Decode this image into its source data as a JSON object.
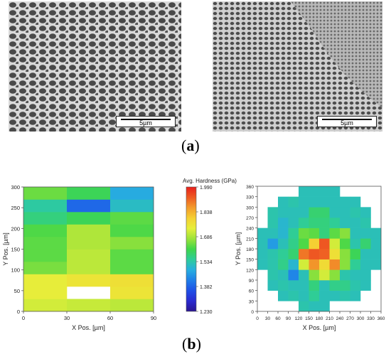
{
  "panels": {
    "a": {
      "label_open": "(",
      "label_letter": "a",
      "label_close": ")"
    },
    "b": {
      "label_open": "(",
      "label_letter": "b",
      "label_close": ")"
    }
  },
  "sem_images": [
    {
      "scale_label": "5µm"
    },
    {
      "scale_label": "5µm"
    }
  ],
  "colors": {
    "sem_background": "#3a3a3a",
    "colorbar_stops": [
      "#2a1590",
      "#2a2ad0",
      "#1f4fe6",
      "#1f7ee8",
      "#27aee0",
      "#2ecc9a",
      "#3fd64a",
      "#9be33a",
      "#e6ef3a",
      "#f5d033",
      "#f39c2b",
      "#ee5a22",
      "#e8201c"
    ]
  },
  "chart_data": [
    {
      "type": "heatmap",
      "title": "",
      "xlabel": "X Pos. [µm]",
      "ylabel": "Y Pos. [µm]",
      "xlim": [
        0,
        90
      ],
      "ylim": [
        0,
        300
      ],
      "xticks": [
        "0",
        "30",
        "60",
        "90"
      ],
      "yticks": [
        "0",
        "50",
        "100",
        "150",
        "200",
        "250",
        "300"
      ],
      "cell_width": 30,
      "cell_height": 30,
      "x_starts": [
        0,
        30,
        60
      ],
      "y_starts": [
        0,
        30,
        60,
        90,
        120,
        150,
        180,
        210,
        240,
        270
      ],
      "values": [
        [
          1.72,
          1.71,
          1.7
        ],
        [
          1.74,
          null,
          1.76
        ],
        [
          1.74,
          1.76,
          1.77
        ],
        [
          1.65,
          1.7,
          1.63
        ],
        [
          1.63,
          1.7,
          1.63
        ],
        [
          1.63,
          1.69,
          1.66
        ],
        [
          1.62,
          1.69,
          1.62
        ],
        [
          1.57,
          1.6,
          1.63
        ],
        [
          1.54,
          1.39,
          1.51
        ],
        [
          1.64,
          1.6,
          1.48
        ]
      ],
      "colorbar": {
        "label": "Avg. Hardness (GPa)",
        "min": 1.23,
        "max": 1.99,
        "ticks": [
          "1.990",
          "1.838",
          "1.686",
          "1.534",
          "1.382",
          "1.230"
        ]
      }
    },
    {
      "type": "heatmap",
      "title": "",
      "xlabel": "X Pos. [µm]",
      "ylabel": "Y Pos. [µm]",
      "xlim": [
        0,
        360
      ],
      "ylim": [
        0,
        360
      ],
      "xticks": [
        "0",
        "30",
        "60",
        "90",
        "120",
        "150",
        "180",
        "210",
        "240",
        "270",
        "300",
        "330",
        "360"
      ],
      "yticks": [
        "0",
        "30",
        "60",
        "90",
        "120",
        "150",
        "180",
        "210",
        "240",
        "270",
        "300",
        "330",
        "360"
      ],
      "cell_width": 30,
      "cell_height": 30,
      "x_starts": [
        0,
        30,
        60,
        90,
        120,
        150,
        180,
        210,
        240,
        270,
        300,
        330
      ],
      "y_starts": [
        0,
        30,
        60,
        90,
        120,
        150,
        180,
        210,
        240,
        270,
        300,
        330
      ],
      "values": [
        [
          null,
          null,
          null,
          null,
          1.53,
          1.52,
          1.52,
          null,
          null,
          null,
          null,
          null
        ],
        [
          null,
          null,
          1.52,
          1.53,
          1.52,
          1.55,
          1.52,
          1.52,
          1.53,
          1.52,
          null,
          null
        ],
        [
          null,
          1.52,
          1.53,
          1.52,
          1.52,
          1.57,
          1.52,
          1.56,
          1.56,
          1.53,
          1.52,
          null
        ],
        [
          null,
          1.53,
          1.52,
          1.43,
          1.52,
          1.66,
          1.72,
          1.66,
          1.53,
          1.52,
          1.52,
          null
        ],
        [
          1.52,
          1.53,
          1.56,
          1.5,
          1.72,
          1.87,
          1.78,
          1.88,
          1.66,
          1.55,
          1.52,
          1.52
        ],
        [
          1.52,
          1.53,
          1.55,
          1.58,
          1.9,
          1.93,
          1.92,
          1.77,
          1.66,
          1.6,
          1.52,
          1.52
        ],
        [
          1.52,
          1.46,
          1.52,
          1.56,
          1.62,
          1.8,
          1.93,
          1.72,
          1.62,
          1.53,
          1.58,
          1.52
        ],
        [
          1.52,
          1.52,
          1.5,
          1.55,
          1.64,
          1.63,
          1.57,
          1.63,
          1.66,
          1.52,
          1.52,
          1.52
        ],
        [
          null,
          1.53,
          1.5,
          1.52,
          1.55,
          1.57,
          1.57,
          1.55,
          1.52,
          1.52,
          1.53,
          null
        ],
        [
          null,
          1.53,
          1.52,
          1.52,
          1.52,
          1.58,
          1.58,
          1.52,
          1.52,
          1.53,
          1.52,
          null
        ],
        [
          null,
          null,
          1.52,
          1.53,
          1.52,
          1.52,
          1.52,
          1.52,
          1.52,
          1.52,
          null,
          null
        ],
        [
          null,
          null,
          null,
          null,
          1.52,
          1.52,
          1.52,
          1.52,
          null,
          null,
          null,
          null
        ]
      ]
    }
  ]
}
